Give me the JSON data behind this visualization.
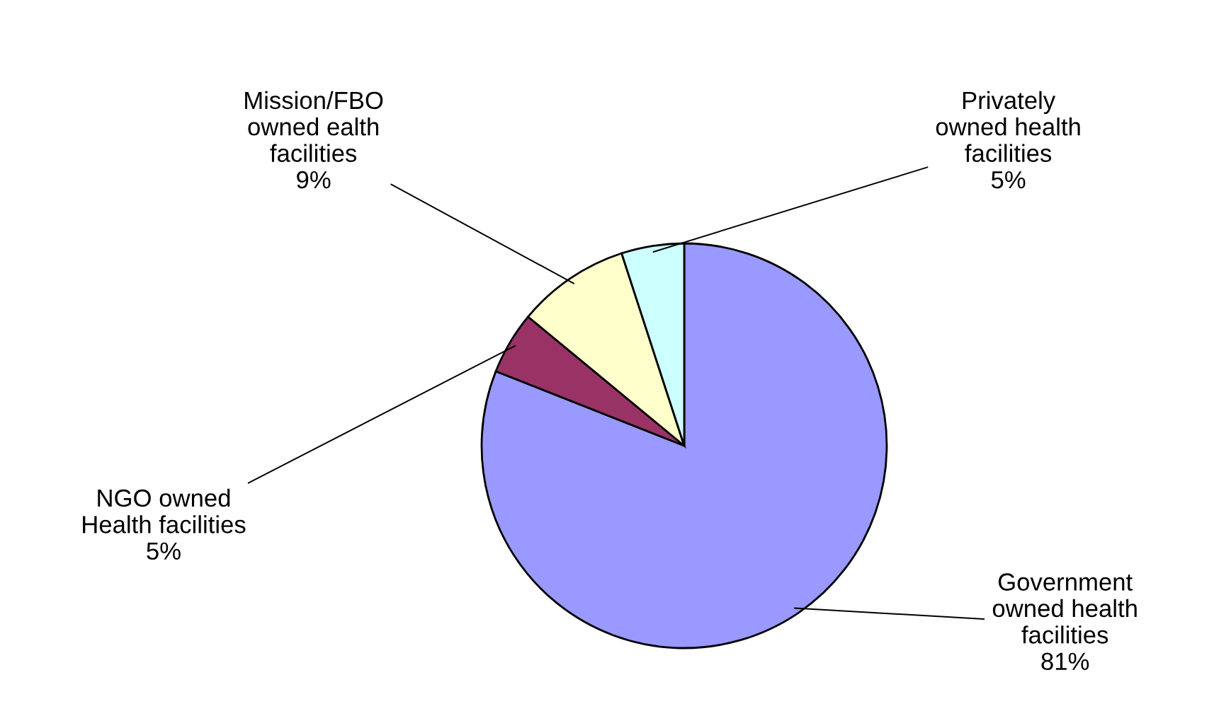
{
  "chart_data": {
    "type": "pie",
    "categories": [
      "Government\nowned health\nfacilities",
      "NGO owned\nHealth facilities",
      "Mission/FBO\nowned ealth\nfacilities",
      "Privately\nowned health\nfacilities"
    ],
    "values": [
      81,
      5,
      9,
      5
    ],
    "value_labels": [
      "81%",
      "5%",
      "9%",
      "5%"
    ],
    "colors": [
      "#9999ff",
      "#993366",
      "#ffffcc",
      "#ccffff"
    ],
    "legend": false
  }
}
